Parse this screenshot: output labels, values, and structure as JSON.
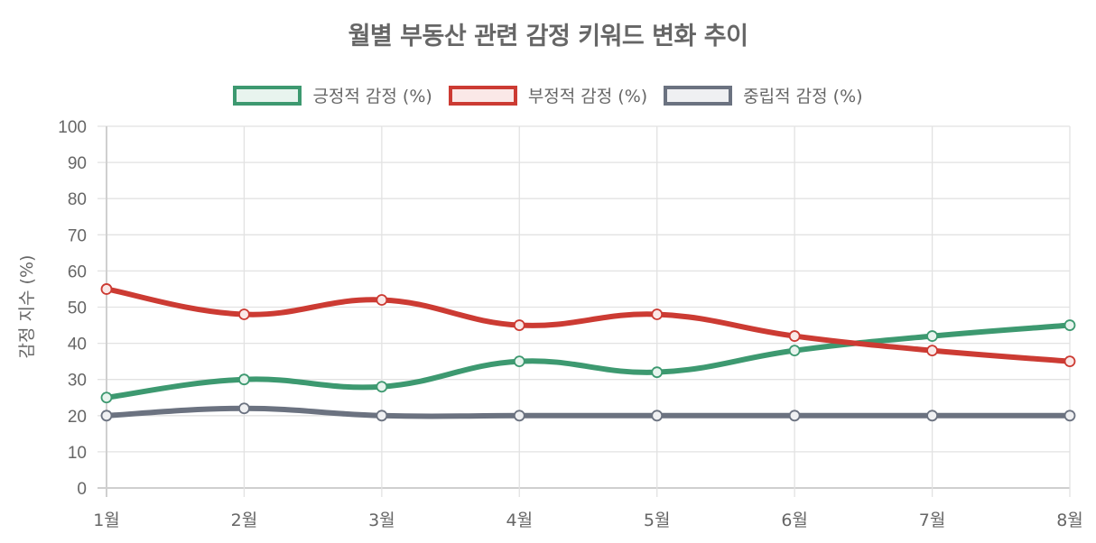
{
  "chart_data": {
    "type": "line",
    "title": "월별 부동산 관련 감정 키워드 변화 추이",
    "xlabel": "",
    "ylabel": "감정 지수 (%)",
    "categories": [
      "1월",
      "2월",
      "3월",
      "4월",
      "5월",
      "6월",
      "7월",
      "8월"
    ],
    "ylim": [
      0,
      100
    ],
    "yticks": [
      0,
      10,
      20,
      30,
      40,
      50,
      60,
      70,
      80,
      90,
      100
    ],
    "grid": true,
    "legend_position": "top",
    "series": [
      {
        "name": "긍정적 감정 (%)",
        "color": "#3d9970",
        "fill": "#e8f4ee",
        "values": [
          25,
          30,
          28,
          35,
          32,
          38,
          42,
          45
        ]
      },
      {
        "name": "부정적 감정 (%)",
        "color": "#cc3b33",
        "fill": "#fae8e7",
        "values": [
          55,
          48,
          52,
          45,
          48,
          42,
          38,
          35
        ]
      },
      {
        "name": "중립적 감정 (%)",
        "color": "#6b7280",
        "fill": "#eff0f2",
        "values": [
          20,
          22,
          20,
          20,
          20,
          20,
          20,
          20
        ]
      }
    ]
  }
}
